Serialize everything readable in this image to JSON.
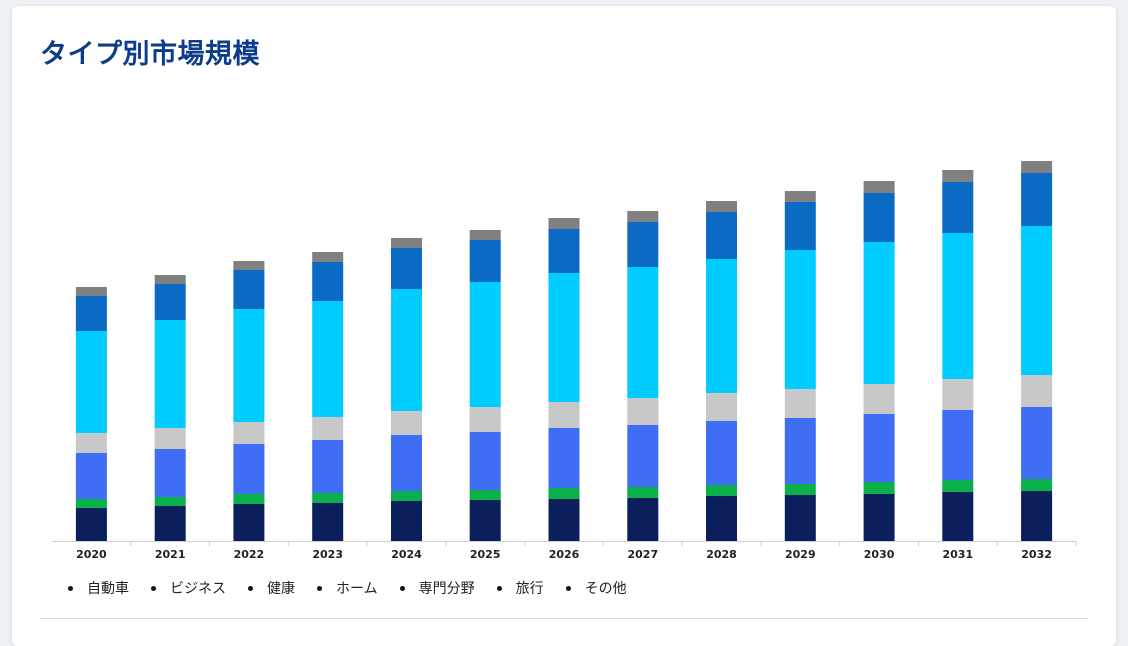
{
  "page": {
    "title": "タイプ別市場規模"
  },
  "chart_data": {
    "type": "bar",
    "stacked": true,
    "categories": [
      "2020",
      "2021",
      "2022",
      "2023",
      "2024",
      "2025",
      "2026",
      "2027",
      "2028",
      "2029",
      "2030",
      "2031",
      "2032"
    ],
    "series": [
      {
        "name": "自動車",
        "color": "#0b1f5c",
        "values": [
          33,
          35,
          37,
          38,
          40,
          41,
          42,
          43,
          45,
          46,
          47,
          49,
          50
        ]
      },
      {
        "name": "ビジネス",
        "color": "#0ab04a",
        "values": [
          9,
          9,
          10,
          10,
          10,
          10,
          11,
          11,
          11,
          11,
          12,
          12,
          12
        ]
      },
      {
        "name": "健康",
        "color": "#3f6ef5",
        "values": [
          46,
          48,
          50,
          53,
          56,
          58,
          60,
          62,
          64,
          66,
          68,
          70,
          72
        ]
      },
      {
        "name": "ホーム",
        "color": "#c8c8c8",
        "values": [
          20,
          21,
          22,
          23,
          24,
          25,
          26,
          27,
          28,
          29,
          30,
          31,
          32
        ]
      },
      {
        "name": "専門分野",
        "color": "#00ccff",
        "values": [
          102,
          108,
          113,
          116,
          122,
          125,
          129,
          131,
          134,
          139,
          142,
          146,
          149
        ]
      },
      {
        "name": "旅行",
        "color": "#0a6ac4",
        "values": [
          35,
          36,
          39,
          39,
          41,
          42,
          44,
          45,
          47,
          48,
          49,
          51,
          53
        ]
      },
      {
        "name": "その他",
        "color": "#808080",
        "values": [
          9,
          9,
          9,
          10,
          10,
          10,
          11,
          11,
          11,
          11,
          12,
          12,
          12
        ]
      }
    ],
    "title": "タイプ別市場規模",
    "legend": "bottom-left",
    "grid": false,
    "ylim": [
      0,
      390
    ]
  }
}
